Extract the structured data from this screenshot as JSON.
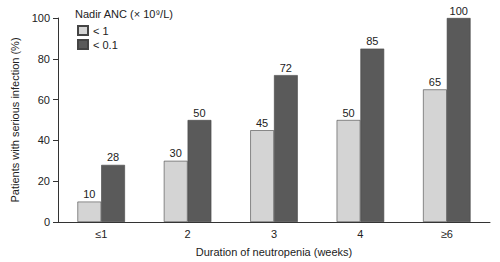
{
  "chart_data": {
    "type": "bar",
    "legend_title": "Nadir ANC (× 10⁹/L)",
    "x_label": "Duration of neutropenia (weeks)",
    "y_label": "Patients with serious infection (%)",
    "categories": [
      "≤1",
      "2",
      "3",
      "4",
      "≥6"
    ],
    "series": [
      {
        "name": "< 1",
        "color": "#d4d4d4",
        "values": [
          10,
          30,
          45,
          50,
          65
        ]
      },
      {
        "name": "< 0.1",
        "color": "#5a5a5a",
        "values": [
          28,
          50,
          72,
          85,
          100
        ]
      }
    ],
    "ylim": [
      0,
      100
    ],
    "yticks": [
      0,
      20,
      40,
      60,
      80,
      100
    ],
    "grid": false,
    "legend": "top-left",
    "data_labels": true
  }
}
